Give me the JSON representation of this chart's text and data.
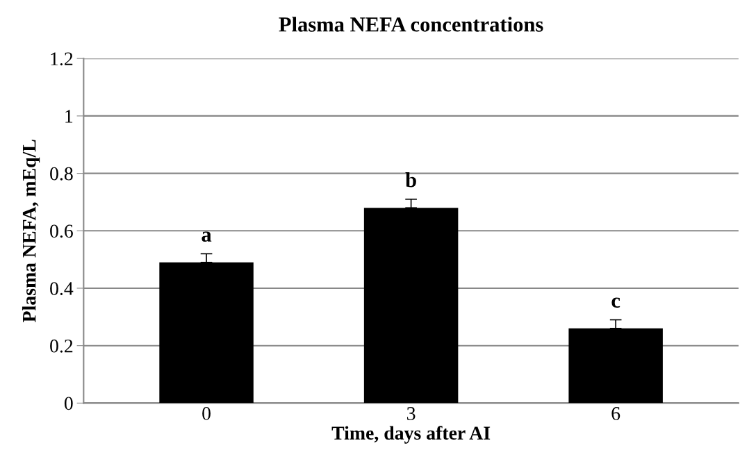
{
  "chart_data": {
    "type": "bar",
    "title": "Plasma NEFA concentrations",
    "xlabel": "Time, days after AI",
    "ylabel": "Plasma NEFA, mEq/L",
    "categories": [
      "0",
      "3",
      "6"
    ],
    "values": [
      0.49,
      0.68,
      0.26
    ],
    "color": "#000000",
    "errors": [
      [
        0.49,
        0.52
      ],
      [
        0.68,
        0.71
      ],
      [
        0.26,
        0.29
      ]
    ],
    "ylim": [
      0,
      1.2
    ],
    "yticks": [
      0,
      0.2,
      0.4,
      0.6,
      0.8,
      1,
      1.2
    ],
    "grid": "y",
    "annotations": [
      {
        "text": "a",
        "x": "0",
        "y": 0.52
      },
      {
        "text": "b",
        "x": "3",
        "y": 0.71
      },
      {
        "text": "c",
        "x": "6",
        "y": 0.29
      }
    ]
  }
}
